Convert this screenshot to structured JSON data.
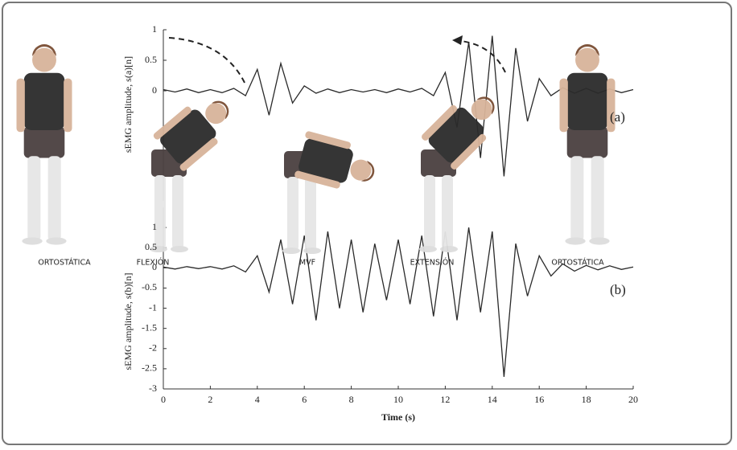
{
  "chart_data": [
    {
      "type": "line",
      "panel_label": "(a)",
      "ylabel": "sEMG amplitude, s(a)[n]",
      "x": [
        0,
        0.5,
        1,
        1.5,
        2,
        2.5,
        3,
        3.5,
        4,
        4.5,
        5,
        5.5,
        6,
        6.5,
        7,
        7.5,
        8,
        8.5,
        9,
        9.5,
        10,
        10.5,
        11,
        11.5,
        12,
        12.5,
        13,
        13.5,
        14,
        14.5,
        15,
        15.5,
        16,
        16.5,
        17,
        17.5,
        18,
        18.5,
        19,
        19.5,
        20
      ],
      "series": [
        {
          "color": "#2a2a2a",
          "values": [
            0.02,
            -0.02,
            0.03,
            -0.03,
            0.02,
            -0.03,
            0.04,
            -0.08,
            0.35,
            -0.4,
            0.45,
            -0.2,
            0.08,
            -0.04,
            0.03,
            -0.03,
            0.02,
            -0.02,
            0.02,
            -0.03,
            0.03,
            -0.02,
            0.04,
            -0.08,
            0.3,
            -0.6,
            0.8,
            -1.1,
            0.9,
            -1.4,
            0.7,
            -0.5,
            0.2,
            -0.08,
            0.05,
            -0.04,
            0.04,
            -0.04,
            0.03,
            -0.03,
            0.02
          ]
        }
      ],
      "xlim": [
        0,
        20
      ],
      "ylim": [
        -1.5,
        1
      ],
      "yticks": [
        0,
        0.5,
        1
      ]
    },
    {
      "type": "line",
      "panel_label": "(b)",
      "ylabel": "sEMG amplitude, s(b)[n]",
      "xlabel": "Time (s)",
      "annotations": [
        "ORTOSTÁTICA",
        "FLEXIÓN",
        "MVF",
        "EXTENSIÓN",
        "ORTOSTÁTICA"
      ],
      "x": [
        0,
        0.5,
        1,
        1.5,
        2,
        2.5,
        3,
        3.5,
        4,
        4.5,
        5,
        5.5,
        6,
        6.5,
        7,
        7.5,
        8,
        8.5,
        9,
        9.5,
        10,
        10.5,
        11,
        11.5,
        12,
        12.5,
        13,
        13.5,
        14,
        14.5,
        15,
        15.5,
        16,
        16.5,
        17,
        17.5,
        18,
        18.5,
        19,
        19.5,
        20
      ],
      "series": [
        {
          "color": "#2a2a2a",
          "values": [
            0.02,
            -0.03,
            0.03,
            -0.02,
            0.03,
            -0.03,
            0.05,
            -0.1,
            0.3,
            -0.6,
            0.7,
            -0.9,
            0.8,
            -1.3,
            0.9,
            -1.0,
            0.7,
            -1.1,
            0.6,
            -0.8,
            0.7,
            -0.9,
            0.8,
            -1.2,
            0.9,
            -1.3,
            1.0,
            -1.1,
            0.9,
            -2.7,
            0.6,
            -0.7,
            0.3,
            -0.2,
            0.1,
            -0.08,
            0.06,
            -0.05,
            0.05,
            -0.04,
            0.02
          ]
        }
      ],
      "xlim": [
        0,
        20
      ],
      "ylim": [
        -3,
        1.5
      ],
      "xticks": [
        0,
        2,
        4,
        6,
        8,
        10,
        12,
        14,
        16,
        18,
        20
      ],
      "yticks": [
        -3,
        -2.5,
        -2,
        -1.5,
        -1,
        -0.5,
        0,
        0.5,
        1
      ]
    }
  ]
}
